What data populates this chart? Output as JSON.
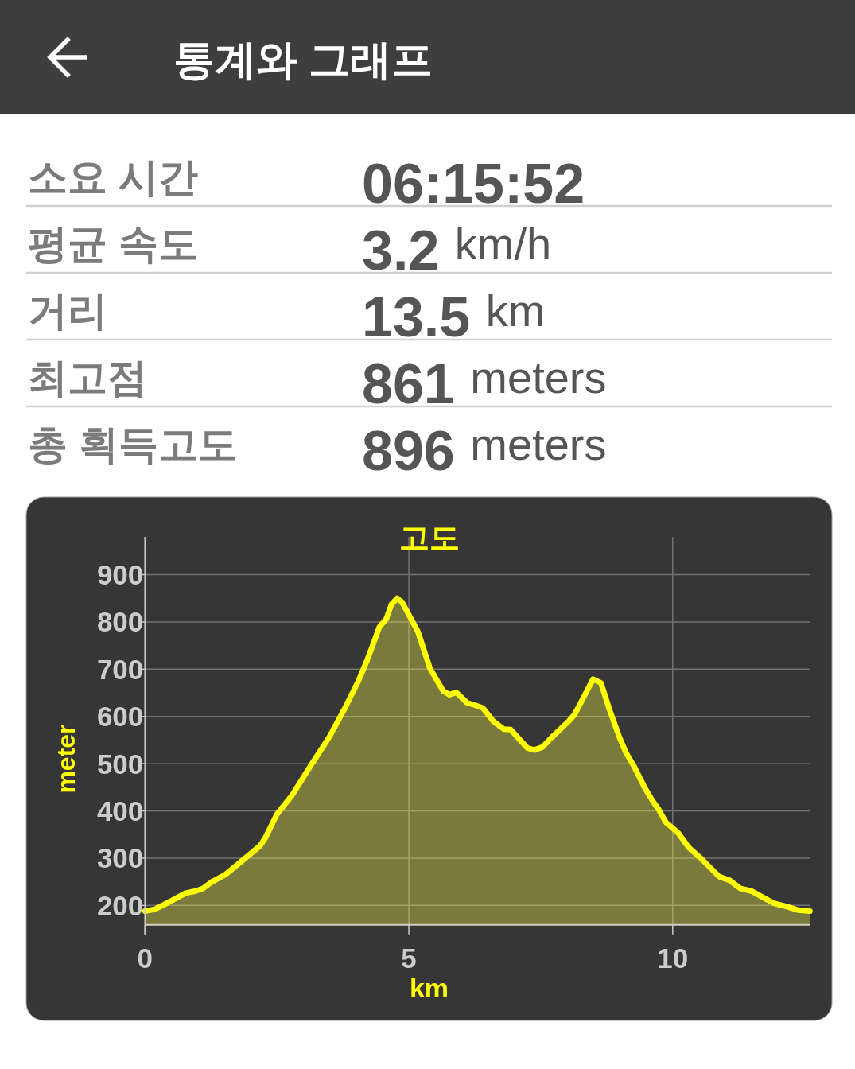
{
  "chart_data": [
    {
      "type": "other",
      "title": "통계와 그래프",
      "annotations": [
        "소요 시간",
        "06:15:52",
        "평균 속도",
        "3.2 km/h",
        "거리",
        "13.5 km",
        "최고점",
        "861 meters",
        "총 획득고도",
        "896 meters"
      ]
    },
    {
      "type": "area",
      "title": "고도",
      "xlabel": "km",
      "ylabel": "meter",
      "color": "#ffff00",
      "line_style": "solid",
      "grid": true,
      "xlim": [
        0,
        12.6
      ],
      "xticks": [
        0,
        5,
        10
      ],
      "ylim": [
        159,
        980
      ],
      "yticks": [
        200,
        300,
        400,
        500,
        600,
        700,
        800,
        900
      ],
      "x": [
        0,
        0.19,
        0.47,
        0.77,
        0.95,
        1.1,
        1.27,
        1.52,
        1.78,
        2.18,
        2.28,
        2.5,
        2.78,
        3.13,
        3.49,
        3.79,
        4.04,
        4.21,
        4.34,
        4.44,
        4.57,
        4.67,
        4.78,
        4.87,
        5.02,
        5.17,
        5.4,
        5.65,
        5.77,
        5.9,
        6.1,
        6.25,
        6.4,
        6.6,
        6.8,
        6.93,
        7.25,
        7.38,
        7.53,
        7.71,
        8.03,
        8.14,
        8.31,
        8.49,
        8.64,
        8.81,
        8.99,
        9.12,
        9.27,
        9.47,
        9.62,
        9.74,
        9.87,
        10.1,
        10.3,
        10.55,
        10.88,
        11.08,
        11.28,
        11.5,
        11.68,
        11.93,
        12.18,
        12.38,
        12.6
      ],
      "values": [
        188,
        192,
        208,
        226,
        230,
        236,
        250,
        265,
        289,
        326,
        343,
        393,
        432,
        494,
        556,
        618,
        674,
        719,
        758,
        789,
        806,
        837,
        850,
        842,
        811,
        780,
        702,
        654,
        646,
        651,
        629,
        624,
        618,
        590,
        573,
        572,
        533,
        529,
        535,
        556,
        590,
        604,
        640,
        679,
        671,
        612,
        556,
        522,
        494,
        449,
        421,
        402,
        376,
        354,
        323,
        298,
        261,
        253,
        236,
        230,
        219,
        204,
        197,
        190,
        188
      ]
    }
  ]
}
